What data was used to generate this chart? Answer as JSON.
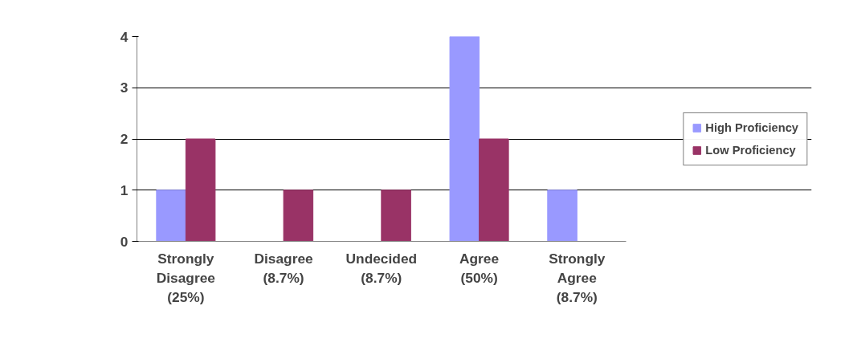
{
  "chart_data": {
    "type": "bar",
    "categories": [
      "Strongly Disagree (25%)",
      "Disagree (8.7%)",
      "Undecided (8.7%)",
      "Agree (50%)",
      "Strongly Agree (8.7%)"
    ],
    "series": [
      {
        "name": "High Proficiency",
        "color": "#9999ff",
        "values": [
          1,
          0,
          0,
          4,
          1
        ]
      },
      {
        "name": "Low Proficiency",
        "color": "#993366",
        "values": [
          2,
          1,
          1,
          2,
          0
        ]
      }
    ],
    "ylim": [
      0,
      4
    ],
    "yticks": [
      0,
      1,
      2,
      3,
      4
    ],
    "grid": "y",
    "legend": "right"
  }
}
